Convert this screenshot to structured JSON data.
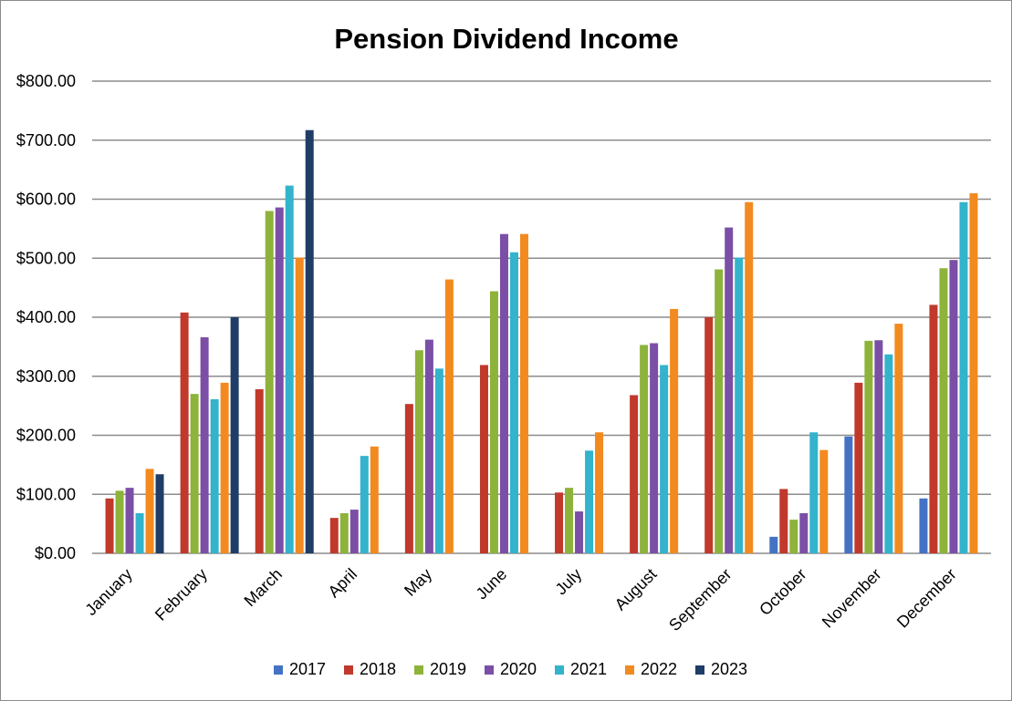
{
  "chart_data": {
    "type": "bar",
    "title": "Pension Dividend Income",
    "categories": [
      "January",
      "February",
      "March",
      "April",
      "May",
      "June",
      "July",
      "August",
      "September",
      "October",
      "November",
      "December"
    ],
    "ylim": [
      0,
      800
    ],
    "yticks": [
      0,
      100,
      200,
      300,
      400,
      500,
      600,
      700,
      800
    ],
    "ytick_labels": [
      "$0.00",
      "$100.00",
      "$200.00",
      "$300.00",
      "$400.00",
      "$500.00",
      "$600.00",
      "$700.00",
      "$800.00"
    ],
    "grid": true,
    "legend_position": "bottom",
    "series": [
      {
        "name": "2017",
        "color": "#4472c4",
        "values": [
          null,
          null,
          null,
          null,
          null,
          null,
          null,
          null,
          null,
          28,
          198,
          93
        ]
      },
      {
        "name": "2018",
        "color": "#c0392b",
        "values": [
          93,
          408,
          278,
          60,
          253,
          319,
          103,
          268,
          400,
          109,
          289,
          421
        ]
      },
      {
        "name": "2019",
        "color": "#8db33b",
        "values": [
          106,
          270,
          580,
          68,
          344,
          444,
          111,
          353,
          481,
          57,
          360,
          483
        ]
      },
      {
        "name": "2020",
        "color": "#7b4fa6",
        "values": [
          111,
          366,
          586,
          74,
          362,
          541,
          71,
          356,
          552,
          68,
          361,
          497
        ]
      },
      {
        "name": "2021",
        "color": "#33b3cc",
        "values": [
          68,
          261,
          623,
          165,
          313,
          510,
          174,
          319,
          501,
          205,
          337,
          595
        ]
      },
      {
        "name": "2022",
        "color": "#f28a1f",
        "values": [
          143,
          289,
          501,
          181,
          464,
          541,
          205,
          414,
          595,
          175,
          389,
          610
        ]
      },
      {
        "name": "2023",
        "color": "#1f3d66",
        "values": [
          134,
          400,
          717,
          null,
          null,
          null,
          null,
          null,
          null,
          null,
          null,
          null
        ]
      }
    ]
  }
}
